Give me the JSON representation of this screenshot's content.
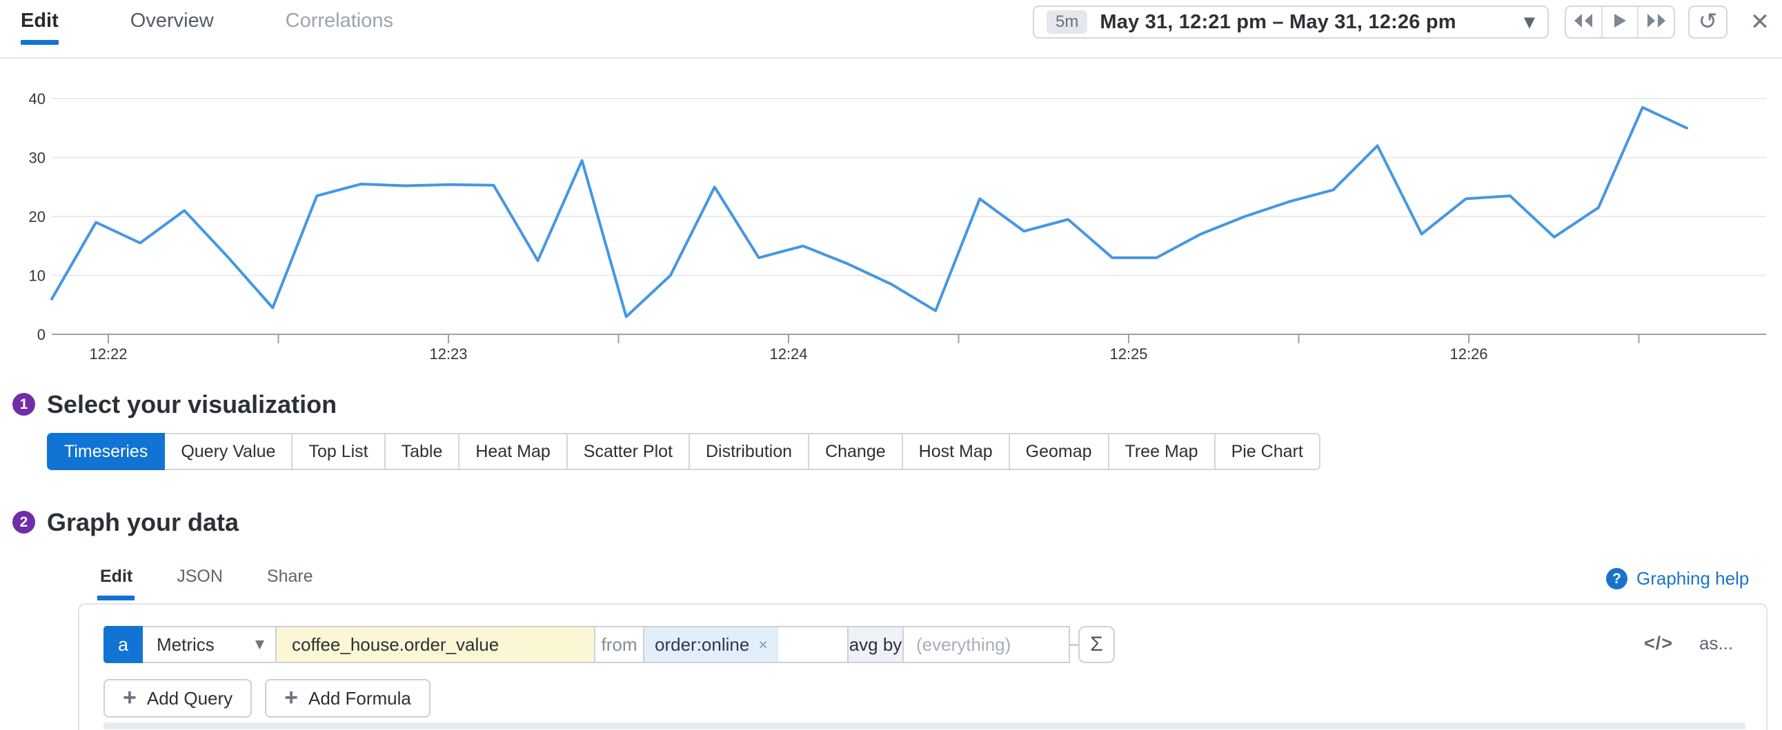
{
  "header": {
    "tabs": [
      "Edit",
      "Overview",
      "Correlations"
    ],
    "active_tab": "Edit",
    "time_selector": {
      "preset": "5m",
      "range": "May 31, 12:21 pm – May 31, 12:26 pm",
      "dropdown_icon": "▼"
    },
    "refresh_icon": "↺",
    "close_icon": "✕"
  },
  "chart_data": {
    "type": "line",
    "title": "",
    "xlabel": "",
    "ylabel": "",
    "x_tick_labels": [
      "12:22",
      "12:23",
      "12:24",
      "12:25",
      "12:26"
    ],
    "y_ticks": [
      0,
      10,
      20,
      30,
      40
    ],
    "ylim": [
      0,
      46
    ],
    "grid": true,
    "legend": "none",
    "line_color": "#4597e3",
    "series": [
      {
        "name": "avg:coffee_house.order_value{order:online}",
        "values": [
          6,
          19,
          15.5,
          21,
          13,
          4.5,
          23.5,
          25.5,
          25.2,
          25.4,
          25.3,
          12.5,
          29.5,
          3,
          10,
          25,
          13,
          15,
          12,
          8.5,
          4,
          23,
          17.5,
          19.5,
          13,
          13,
          17,
          20,
          22.5,
          24.5,
          32,
          17,
          23,
          23.5,
          16.5,
          21.5,
          38.5,
          35
        ]
      }
    ]
  },
  "sections": {
    "visualization": {
      "step": "1",
      "heading": "Select your visualization",
      "active": "Timeseries",
      "options": [
        "Timeseries",
        "Query Value",
        "Top List",
        "Table",
        "Heat Map",
        "Scatter Plot",
        "Distribution",
        "Change",
        "Host Map",
        "Geomap",
        "Tree Map",
        "Pie Chart"
      ]
    },
    "graph": {
      "step": "2",
      "heading": "Graph your data",
      "tabs": [
        "Edit",
        "JSON",
        "Share"
      ],
      "active_tab": "Edit",
      "help_icon": "?",
      "help_label": "Graphing help"
    }
  },
  "query": {
    "letter": "a",
    "data_source": "Metrics",
    "metric": "coffee_house.order_value",
    "from_label": "from",
    "filter_tag": "order:online",
    "remove_icon": "×",
    "aggregator": "avg by",
    "group_by_placeholder": "(everything)",
    "sigma_icon": "Σ",
    "code_icon": "</>",
    "as_label": "as...",
    "plus_icon": "+",
    "add_query_label": "Add Query",
    "add_formula_label": "Add Formula"
  },
  "colors": {
    "accent": "#1173d3",
    "step_purple": "#6f2da8",
    "line_blue": "#4597e3",
    "metric_bg": "#fbf7d4",
    "tag_bg": "#e3eefb",
    "help_blue": "#1a73c9"
  }
}
